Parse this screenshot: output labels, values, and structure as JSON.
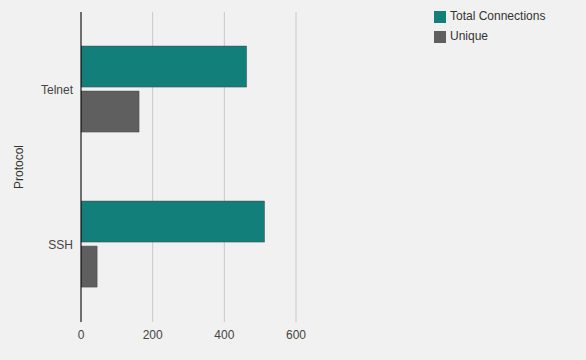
{
  "chart_data": {
    "type": "bar",
    "orientation": "horizontal",
    "y_label": "Protocol",
    "categories": [
      "Telnet",
      "SSH"
    ],
    "series": [
      {
        "name": "Total Connections",
        "color": "#137f7b",
        "values": [
          462,
          512
        ]
      },
      {
        "name": "Unique",
        "color": "#5f5f5f",
        "values": [
          162,
          45
        ]
      }
    ],
    "xlim": [
      0,
      600
    ],
    "xticks": [
      0,
      200,
      400,
      600
    ],
    "grid": true,
    "legend": "top-right"
  }
}
